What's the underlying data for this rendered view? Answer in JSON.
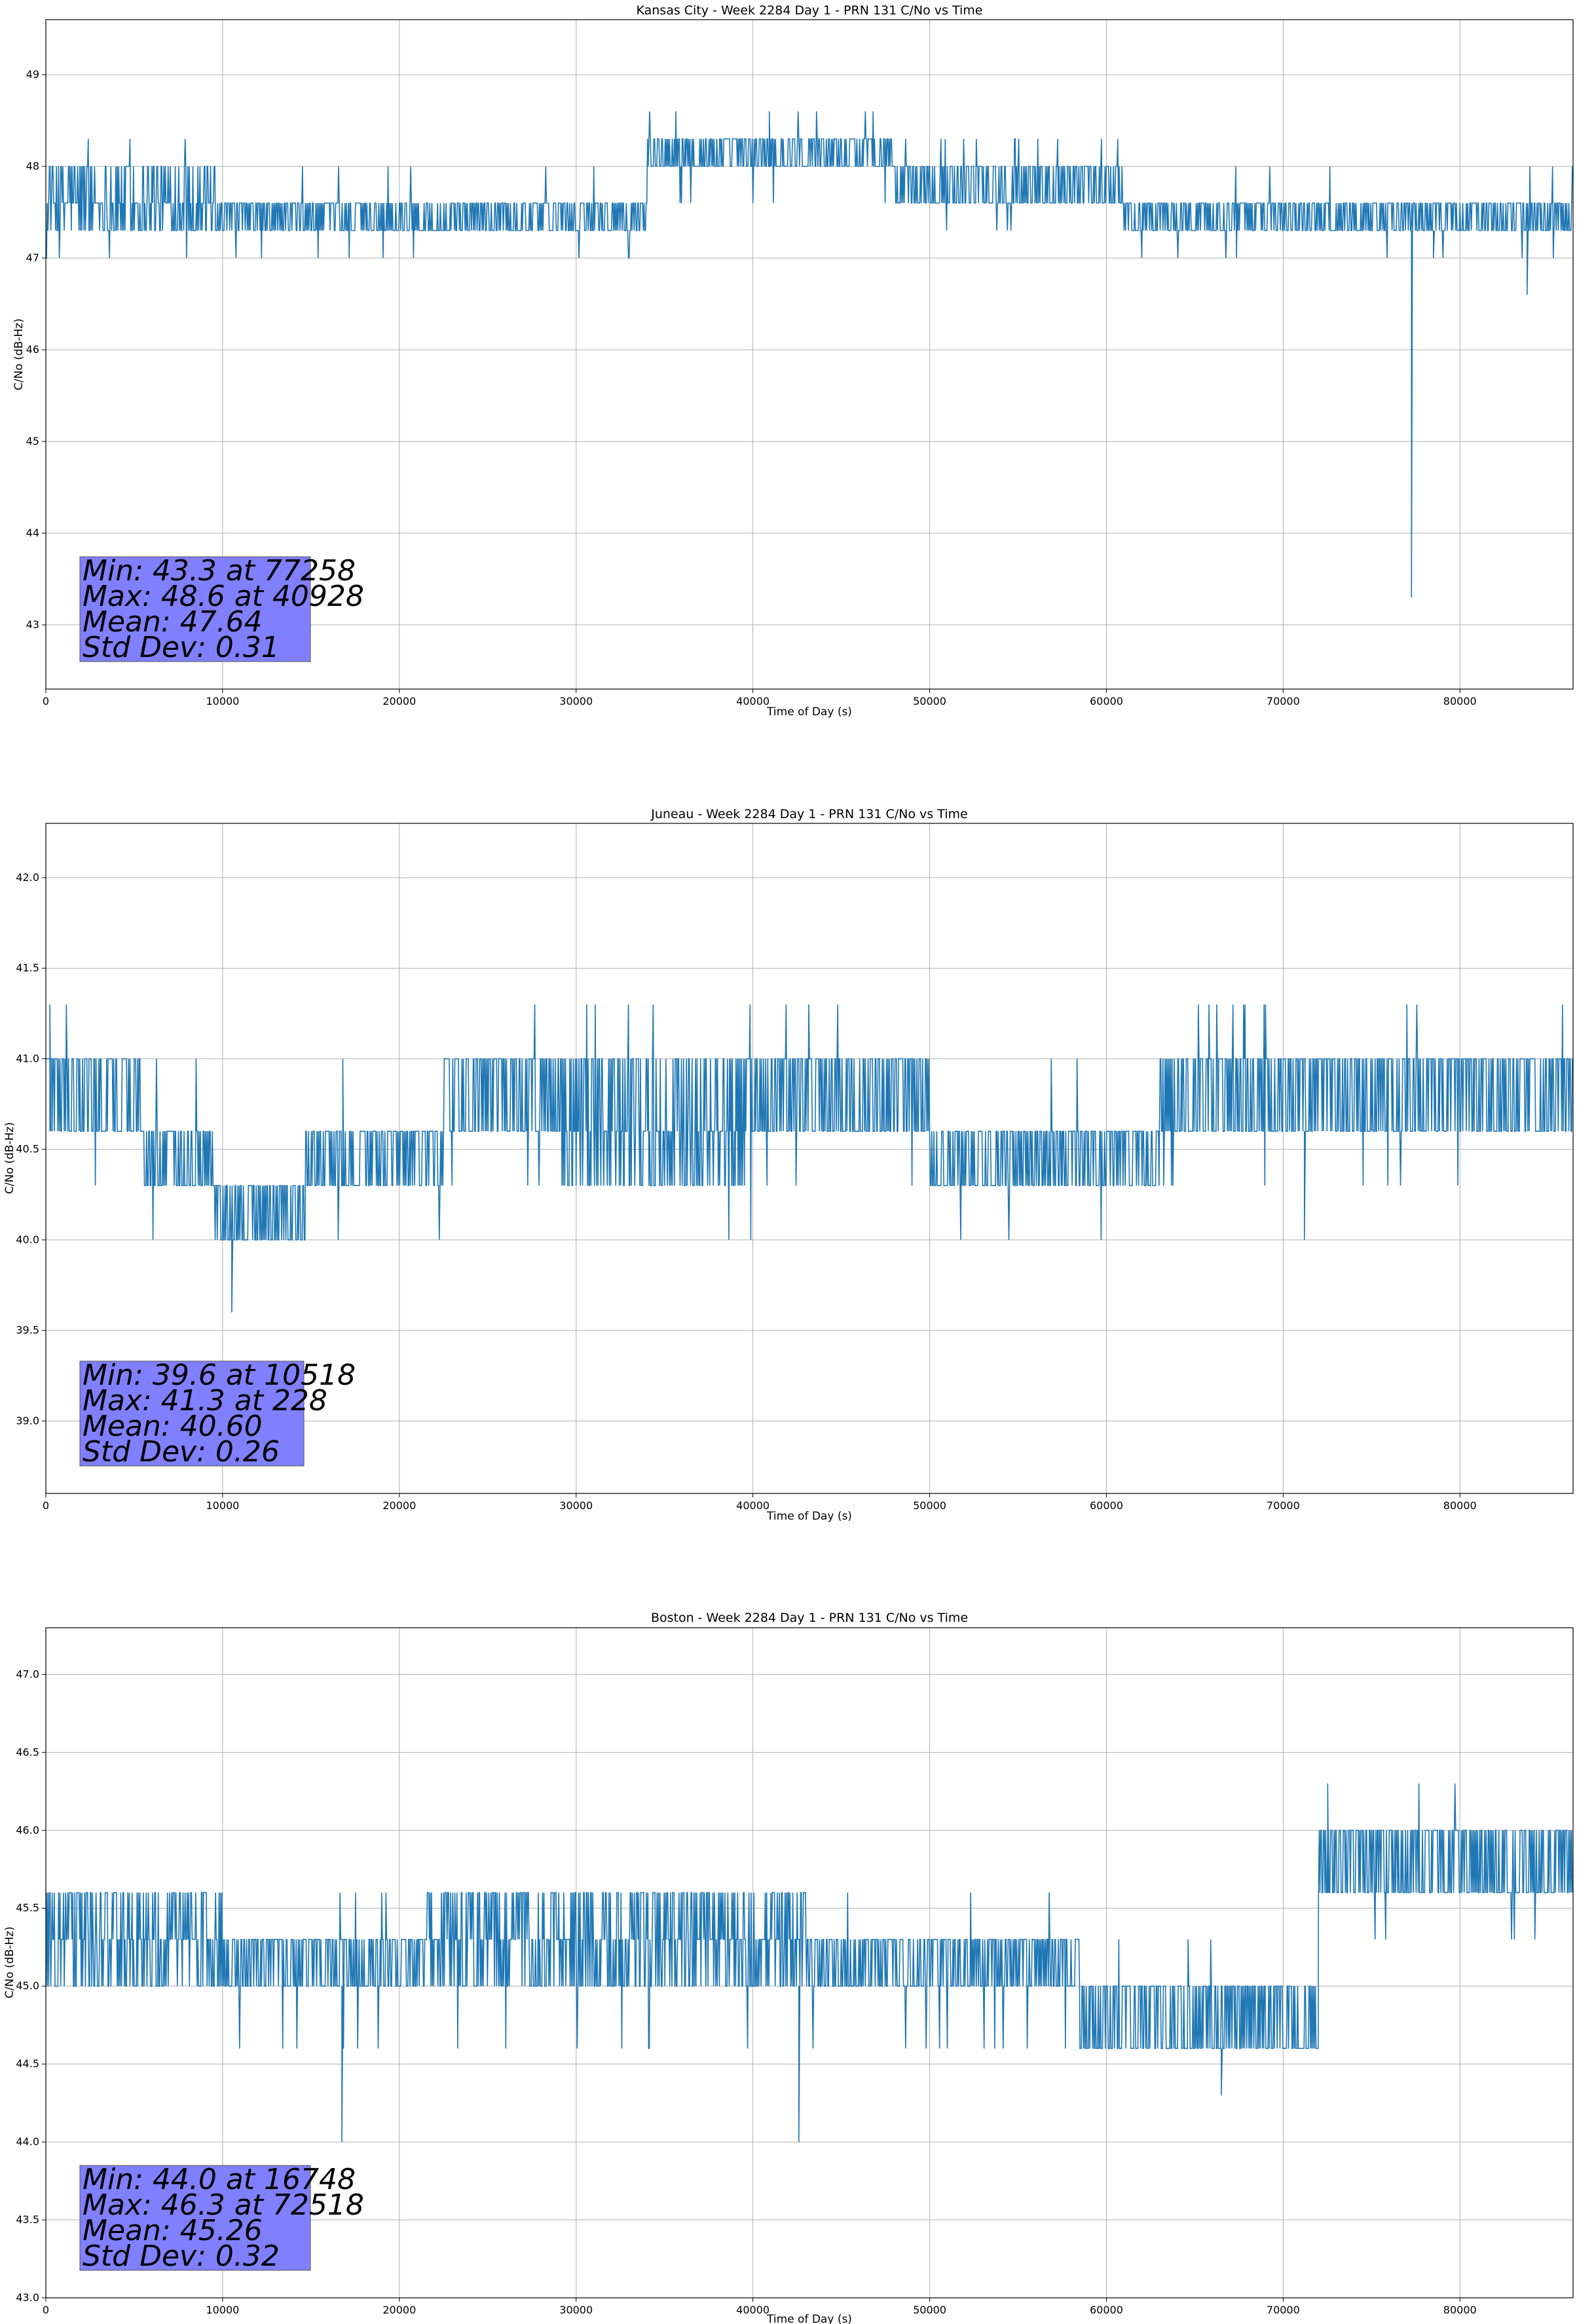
{
  "chart_data": [
    {
      "type": "line",
      "title": "Kansas City - Week 2284 Day 1 - PRN 131 C/No vs Time",
      "xlabel": "Time of Day (s)",
      "ylabel": "C/No (dB-Hz)",
      "xlim": [
        0,
        86400
      ],
      "ylim": [
        42.3,
        49.6
      ],
      "xticks": [
        0,
        10000,
        20000,
        30000,
        40000,
        50000,
        60000,
        70000,
        80000
      ],
      "yticks": [
        43,
        44,
        45,
        46,
        47,
        48,
        49
      ],
      "ytick_labels": [
        "43",
        "44",
        "45",
        "46",
        "47",
        "48",
        "49"
      ],
      "grid": true,
      "line_color": "#1f77b4",
      "stats_box_color": "#8080ff",
      "stats_lines": [
        "Min: 43.3 at 77258",
        "Max: 48.6 at 40928",
        "Mean: 47.64",
        "Std Dev: 0.31"
      ],
      "series": [
        {
          "segments": [
            {
              "x0": 0,
              "x1": 10000,
              "levels": [
                47.3,
                47.6,
                48.0
              ],
              "spike_up": 48.3,
              "spike_down": 47.0
            },
            {
              "x0": 10000,
              "x1": 34000,
              "levels": [
                47.3,
                47.6
              ],
              "spike_up": 48.0,
              "spike_down": 47.0
            },
            {
              "x0": 34000,
              "x1": 48000,
              "levels": [
                48.0,
                48.3
              ],
              "spike_up": 48.6,
              "spike_down": 47.6
            },
            {
              "x0": 48000,
              "x1": 61000,
              "levels": [
                47.6,
                48.0
              ],
              "spike_up": 48.3,
              "spike_down": 47.3
            },
            {
              "x0": 61000,
              "x1": 86400,
              "levels": [
                47.3,
                47.6
              ],
              "spike_up": 48.0,
              "spike_down": 47.0
            }
          ],
          "points": [
            {
              "x": 77258,
              "y": 43.3
            },
            {
              "x": 40928,
              "y": 48.6
            },
            {
              "x": 83800,
              "y": 46.6
            },
            {
              "x": 78500,
              "y": 47.0
            }
          ]
        }
      ]
    },
    {
      "type": "line",
      "title": "Juneau - Week 2284 Day 1 - PRN 131 C/No vs Time",
      "xlabel": "Time of Day (s)",
      "ylabel": "C/No (dB-Hz)",
      "xlim": [
        0,
        86400
      ],
      "ylim": [
        38.6,
        42.3
      ],
      "xticks": [
        0,
        10000,
        20000,
        30000,
        40000,
        50000,
        60000,
        70000,
        80000
      ],
      "yticks": [
        39.0,
        39.5,
        40.0,
        40.5,
        41.0,
        41.5,
        42.0
      ],
      "ytick_labels": [
        "39.0",
        "39.5",
        "40.0",
        "40.5",
        "41.0",
        "41.5",
        "42.0"
      ],
      "grid": true,
      "line_color": "#1f77b4",
      "stats_box_color": "#8080ff",
      "stats_lines": [
        "Min: 39.6 at 10518",
        "Max: 41.3 at 228",
        "Mean: 40.60",
        "Std Dev: 0.26"
      ],
      "series": [
        {
          "segments": [
            {
              "x0": 0,
              "x1": 5500,
              "levels": [
                40.6,
                41.0
              ],
              "spike_up": 41.3,
              "spike_down": 40.3
            },
            {
              "x0": 5500,
              "x1": 9500,
              "levels": [
                40.3,
                40.6
              ],
              "spike_up": 41.0,
              "spike_down": 40.0
            },
            {
              "x0": 9500,
              "x1": 14700,
              "levels": [
                40.0,
                40.3
              ],
              "spike_up": 40.6,
              "spike_down": 40.0
            },
            {
              "x0": 14700,
              "x1": 22500,
              "levels": [
                40.3,
                40.6
              ],
              "spike_up": 41.0,
              "spike_down": 40.0
            },
            {
              "x0": 22500,
              "x1": 29000,
              "levels": [
                40.6,
                41.0
              ],
              "spike_up": 41.3,
              "spike_down": 40.3
            },
            {
              "x0": 29000,
              "x1": 40000,
              "levels": [
                40.3,
                40.6,
                41.0
              ],
              "spike_up": 41.3,
              "spike_down": 40.0
            },
            {
              "x0": 40000,
              "x1": 50000,
              "levels": [
                40.6,
                41.0
              ],
              "spike_up": 41.3,
              "spike_down": 40.3
            },
            {
              "x0": 50000,
              "x1": 57500,
              "levels": [
                40.3,
                40.6
              ],
              "spike_up": 41.0,
              "spike_down": 40.0
            },
            {
              "x0": 57500,
              "x1": 63000,
              "levels": [
                40.3,
                40.6
              ],
              "spike_up": 41.0,
              "spike_down": 40.0
            },
            {
              "x0": 63000,
              "x1": 81000,
              "levels": [
                40.6,
                41.0
              ],
              "spike_up": 41.3,
              "spike_down": 40.3
            },
            {
              "x0": 81000,
              "x1": 86400,
              "levels": [
                40.6,
                41.0
              ],
              "spike_up": 41.3,
              "spike_down": 40.6
            }
          ],
          "points": [
            {
              "x": 10518,
              "y": 39.6
            },
            {
              "x": 228,
              "y": 41.3
            },
            {
              "x": 16800,
              "y": 41.0
            },
            {
              "x": 71200,
              "y": 40.0
            }
          ]
        }
      ]
    },
    {
      "type": "line",
      "title": "Boston - Week 2284 Day 1 - PRN 131 C/No vs Time",
      "xlabel": "Time of Day (s)",
      "ylabel": "C/No (dB-Hz)",
      "xlim": [
        0,
        86400
      ],
      "ylim": [
        43.0,
        47.3
      ],
      "xticks": [
        0,
        10000,
        20000,
        30000,
        40000,
        50000,
        60000,
        70000,
        80000
      ],
      "yticks": [
        43.0,
        43.5,
        44.0,
        44.5,
        45.0,
        45.5,
        46.0,
        46.5,
        47.0
      ],
      "ytick_labels": [
        "43.0",
        "43.5",
        "44.0",
        "44.5",
        "45.0",
        "45.5",
        "46.0",
        "46.5",
        "47.0"
      ],
      "grid": true,
      "line_color": "#1f77b4",
      "stats_box_color": "#8080ff",
      "stats_lines": [
        "Min: 44.0 at 16748",
        "Max: 46.3 at 72518",
        "Mean: 45.26",
        "Std Dev: 0.32"
      ],
      "series": [
        {
          "segments": [
            {
              "x0": 0,
              "x1": 10000,
              "levels": [
                45.0,
                45.3,
                45.6
              ],
              "spike_up": 45.6,
              "spike_down": 45.0
            },
            {
              "x0": 10000,
              "x1": 21500,
              "levels": [
                45.0,
                45.3
              ],
              "spike_up": 45.6,
              "spike_down": 44.6
            },
            {
              "x0": 21500,
              "x1": 43000,
              "levels": [
                45.0,
                45.3,
                45.6
              ],
              "spike_up": 45.6,
              "spike_down": 44.6
            },
            {
              "x0": 43000,
              "x1": 58500,
              "levels": [
                45.0,
                45.3
              ],
              "spike_up": 45.6,
              "spike_down": 44.6
            },
            {
              "x0": 58500,
              "x1": 72000,
              "levels": [
                44.6,
                45.0
              ],
              "spike_up": 45.3,
              "spike_down": 44.6
            },
            {
              "x0": 72000,
              "x1": 86400,
              "levels": [
                45.6,
                46.0
              ],
              "spike_up": 46.3,
              "spike_down": 45.3
            }
          ],
          "points": [
            {
              "x": 16748,
              "y": 44.0
            },
            {
              "x": 72518,
              "y": 46.3
            },
            {
              "x": 42600,
              "y": 44.0
            },
            {
              "x": 66500,
              "y": 44.3
            }
          ]
        }
      ]
    }
  ]
}
